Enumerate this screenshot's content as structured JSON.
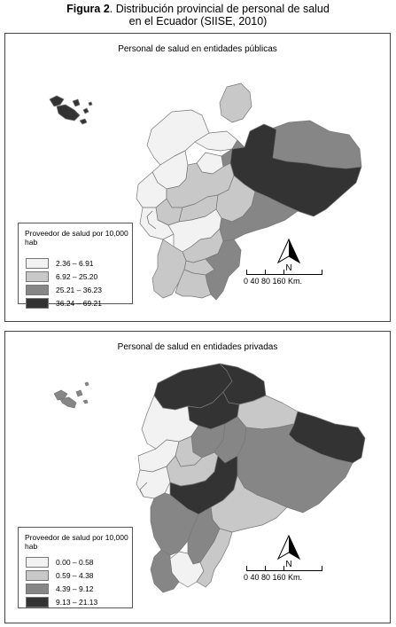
{
  "figure": {
    "label": "Figura 2",
    "title_rest": ". Distribución provincial de personal de salud",
    "title_line2": "en el Ecuador (SIISE, 2010)"
  },
  "panels": [
    {
      "title": "Personal de salud en entidades públicas",
      "legend_title": "Proveedor de salud por 10,000 hab",
      "classes": [
        {
          "label": "2.36  –  6.91",
          "color": "#f2f2f2"
        },
        {
          "label": "6.92  –  25.20",
          "color": "#c8c8c8"
        },
        {
          "label": "25.21  –  36.23",
          "color": "#868686"
        },
        {
          "label": "36.24  –  69.21",
          "color": "#333333"
        }
      ]
    },
    {
      "title": "Personal de salud en entidades privadas",
      "legend_title": "Proveedor de salud por 10,000 hab",
      "classes": [
        {
          "label": "0.00  –  0.58",
          "color": "#f2f2f2"
        },
        {
          "label": "0.59  –  4.38",
          "color": "#c8c8c8"
        },
        {
          "label": "4.39  –  9.12",
          "color": "#868686"
        },
        {
          "label": "9.13  –  21.13",
          "color": "#333333"
        }
      ]
    }
  ],
  "north_label": "N",
  "scale": {
    "ticks": "0   40   80          160 Km."
  }
}
